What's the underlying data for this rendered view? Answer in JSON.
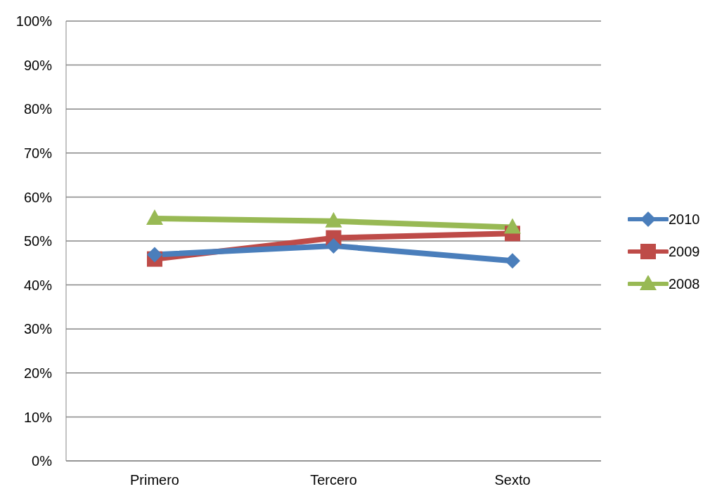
{
  "chart_data": {
    "type": "line",
    "categories": [
      "Primero",
      "Tercero",
      "Sexto"
    ],
    "series": [
      {
        "name": "2010",
        "color": "#4a7ebb",
        "marker": "diamond",
        "values": [
          46.9,
          48.9,
          45.5
        ]
      },
      {
        "name": "2009",
        "color": "#be4b48",
        "marker": "square",
        "values": [
          45.9,
          50.7,
          51.7
        ]
      },
      {
        "name": "2008",
        "color": "#98b954",
        "marker": "triangle",
        "values": [
          55.1,
          54.5,
          53.1
        ]
      }
    ],
    "ylim": [
      0,
      100
    ],
    "yticks": [
      {
        "value": 0,
        "label": "0%"
      },
      {
        "value": 10,
        "label": "10%"
      },
      {
        "value": 20,
        "label": "20%"
      },
      {
        "value": 30,
        "label": "30%"
      },
      {
        "value": 40,
        "label": "40%"
      },
      {
        "value": 50,
        "label": "50%"
      },
      {
        "value": 60,
        "label": "60%"
      },
      {
        "value": 70,
        "label": "70%"
      },
      {
        "value": 80,
        "label": "80%"
      },
      {
        "value": 90,
        "label": "90%"
      },
      {
        "value": 100,
        "label": "100%"
      }
    ],
    "grid": "y",
    "legend": "right"
  }
}
